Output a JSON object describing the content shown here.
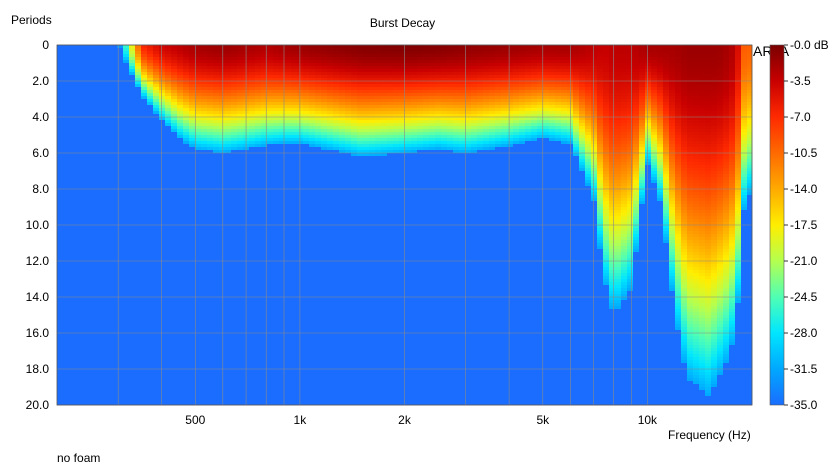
{
  "chart_data": {
    "type": "heatmap",
    "title": "Burst Decay",
    "ylabel": "Periods",
    "xlabel": "Frequency (Hz)",
    "note": "no foam",
    "brand": "ARTA",
    "x_scale": "log",
    "xlim": [
      200,
      20000
    ],
    "ylim": [
      0,
      20
    ],
    "y_inverted": true,
    "grid": true,
    "x_ticks": [
      {
        "value": 500,
        "label": "500"
      },
      {
        "value": 1000,
        "label": "1k"
      },
      {
        "value": 2000,
        "label": "2k"
      },
      {
        "value": 5000,
        "label": "5k"
      },
      {
        "value": 10000,
        "label": "10k"
      }
    ],
    "y_ticks": [
      {
        "value": 0,
        "label": "0"
      },
      {
        "value": 2,
        "label": "2.0"
      },
      {
        "value": 4,
        "label": "4.0"
      },
      {
        "value": 6,
        "label": "6.0"
      },
      {
        "value": 8,
        "label": "8.0"
      },
      {
        "value": 10,
        "label": "10.0"
      },
      {
        "value": 12,
        "label": "12.0"
      },
      {
        "value": 14,
        "label": "14.0"
      },
      {
        "value": 16,
        "label": "16.0"
      },
      {
        "value": 18,
        "label": "18.0"
      },
      {
        "value": 20,
        "label": "20.0"
      }
    ],
    "colorbar": {
      "range": [
        -35,
        0
      ],
      "ticks": [
        "-0.0 dB",
        "-3.5",
        "-7.0",
        "-10.5",
        "-14.0",
        "-17.5",
        "-21.0",
        "-24.5",
        "-28.0",
        "-31.5",
        "-35.0"
      ],
      "colors": [
        "#7a0000",
        "#c80000",
        "#ff2a00",
        "#ff6a00",
        "#ffaa00",
        "#ffee00",
        "#b4ff50",
        "#50ffb4",
        "#00e6ff",
        "#00a8ff",
        "#1a6dff"
      ]
    },
    "frequencies": [
      300,
      350,
      400,
      450,
      500,
      600,
      700,
      800,
      900,
      1000,
      1200,
      1500,
      2000,
      2500,
      3000,
      4000,
      5000,
      6000,
      7000,
      7500,
      8000,
      9000,
      10000,
      11000,
      12000,
      13000,
      14000,
      15000,
      16000,
      17000,
      18000,
      19000,
      20000
    ],
    "decay_periods_to_-31.5dB": [
      0.0,
      2.8,
      4.2,
      5.2,
      5.8,
      6.0,
      5.8,
      5.6,
      5.5,
      5.5,
      5.8,
      6.2,
      6.0,
      5.8,
      6.0,
      5.6,
      5.2,
      5.5,
      8.5,
      13.0,
      15.0,
      13.5,
      6.5,
      9.0,
      15.0,
      18.5,
      19.0,
      19.5,
      18.5,
      17.5,
      16.0,
      9.0,
      8.0
    ],
    "peak_level_db": [
      -35,
      -7,
      -4,
      -3,
      -2,
      -1.5,
      -2,
      -2.5,
      -2,
      -1.5,
      -1,
      -0.5,
      -0.3,
      -0.5,
      -1,
      -1.5,
      -2,
      -2,
      -3,
      -3.5,
      -3,
      -3,
      -2,
      -2,
      -2,
      -1.5,
      -1.5,
      -1.5,
      -1.5,
      -2,
      -3,
      -10,
      -10
    ]
  }
}
